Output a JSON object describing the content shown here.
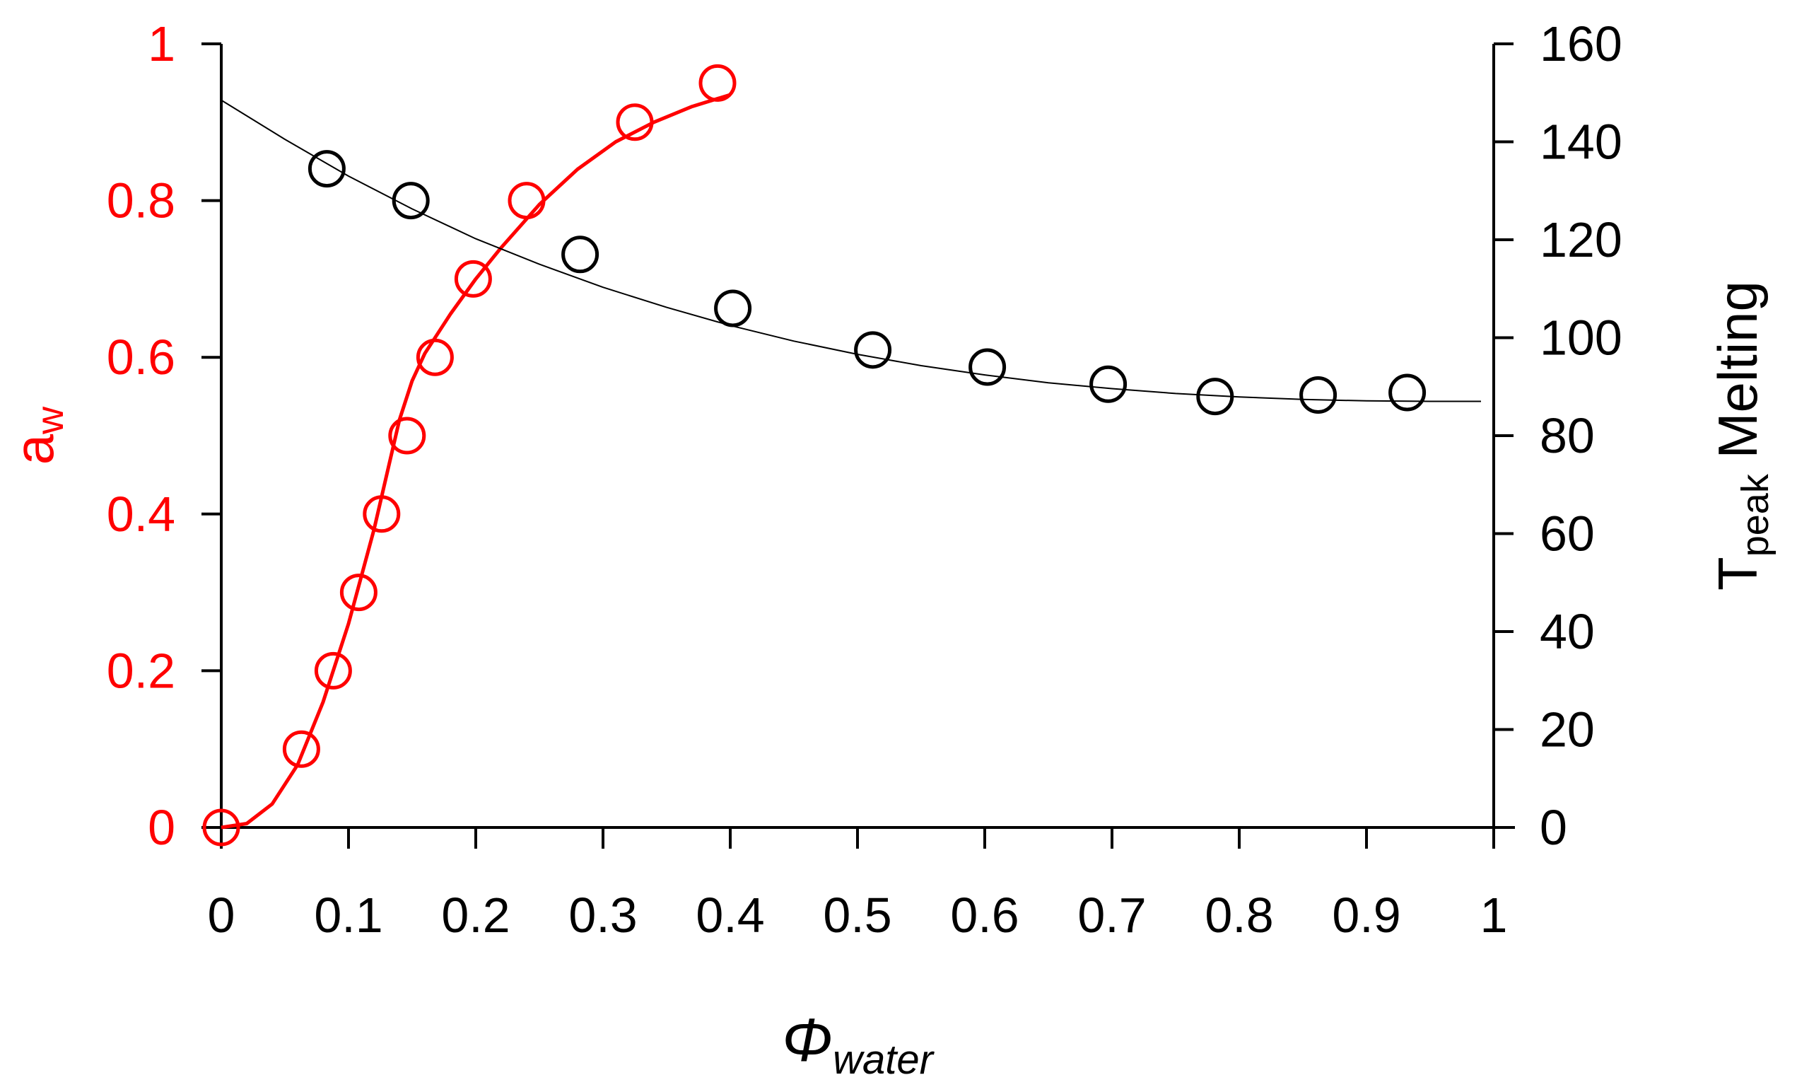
{
  "colors": {
    "left_series": "#ff0000",
    "right_series": "#000000",
    "axes": "#000000"
  },
  "chart_data": {
    "type": "scatter",
    "x_axis": {
      "label_symbol": "Φ",
      "label_subscript": "water",
      "range": [
        0,
        1
      ],
      "ticks": [
        "0",
        "0.1",
        "0.2",
        "0.3",
        "0.4",
        "0.5",
        "0.6",
        "0.7",
        "0.8",
        "0.9",
        "1"
      ],
      "tick_values": [
        0,
        0.1,
        0.2,
        0.3,
        0.4,
        0.5,
        0.6,
        0.7,
        0.8,
        0.9,
        1
      ]
    },
    "y_left_axis": {
      "label_main": "a",
      "label_subscript": "w",
      "range": [
        0,
        1
      ],
      "ticks": [
        "0",
        "0.2",
        "0.4",
        "0.6",
        "0.8",
        "1"
      ],
      "tick_values": [
        0,
        0.2,
        0.4,
        0.6,
        0.8,
        1
      ]
    },
    "y_right_axis": {
      "label_main": "T",
      "label_subscript": "peak",
      "label_suffix": " Melting",
      "range": [
        0,
        160
      ],
      "ticks": [
        "0",
        "20",
        "40",
        "60",
        "80",
        "100",
        "120",
        "140",
        "160"
      ],
      "tick_values": [
        0,
        20,
        40,
        60,
        80,
        100,
        120,
        140,
        160
      ]
    },
    "series": [
      {
        "axis": "left",
        "marker": "open-circle",
        "points": [
          [
            0,
            0
          ],
          [
            0.063,
            0.1
          ],
          [
            0.088,
            0.2
          ],
          [
            0.108,
            0.3
          ],
          [
            0.126,
            0.4
          ],
          [
            0.146,
            0.5
          ],
          [
            0.168,
            0.6
          ],
          [
            0.198,
            0.7
          ],
          [
            0.24,
            0.8
          ],
          [
            0.325,
            0.9
          ],
          [
            0.39,
            0.95
          ]
        ],
        "fit": [
          [
            0,
            0
          ],
          [
            0.02,
            0.005
          ],
          [
            0.04,
            0.03
          ],
          [
            0.06,
            0.08
          ],
          [
            0.08,
            0.16
          ],
          [
            0.1,
            0.26
          ],
          [
            0.12,
            0.38
          ],
          [
            0.14,
            0.52
          ],
          [
            0.15,
            0.57
          ],
          [
            0.16,
            0.605
          ],
          [
            0.18,
            0.655
          ],
          [
            0.2,
            0.7
          ],
          [
            0.22,
            0.74
          ],
          [
            0.25,
            0.795
          ],
          [
            0.28,
            0.84
          ],
          [
            0.31,
            0.875
          ],
          [
            0.34,
            0.9
          ],
          [
            0.37,
            0.92
          ],
          [
            0.4,
            0.935
          ]
        ]
      },
      {
        "axis": "right",
        "marker": "open-circle",
        "points": [
          [
            0.083,
            134.5
          ],
          [
            0.149,
            128
          ],
          [
            0.282,
            117
          ],
          [
            0.402,
            106
          ],
          [
            0.512,
            97.5
          ],
          [
            0.602,
            94
          ],
          [
            0.697,
            90.5
          ],
          [
            0.781,
            88
          ],
          [
            0.862,
            88.3
          ],
          [
            0.932,
            88.8
          ]
        ],
        "fit": [
          [
            0,
            148.5
          ],
          [
            0.05,
            140.5
          ],
          [
            0.1,
            133
          ],
          [
            0.15,
            126.3
          ],
          [
            0.2,
            120.2
          ],
          [
            0.25,
            115
          ],
          [
            0.3,
            110.3
          ],
          [
            0.35,
            106.2
          ],
          [
            0.4,
            102.5
          ],
          [
            0.45,
            99.3
          ],
          [
            0.5,
            96.6
          ],
          [
            0.55,
            94.3
          ],
          [
            0.6,
            92.4
          ],
          [
            0.65,
            90.8
          ],
          [
            0.7,
            89.6
          ],
          [
            0.75,
            88.6
          ],
          [
            0.8,
            87.9
          ],
          [
            0.85,
            87.4
          ],
          [
            0.9,
            87.1
          ],
          [
            0.95,
            87
          ],
          [
            0.99,
            87
          ]
        ]
      }
    ]
  }
}
